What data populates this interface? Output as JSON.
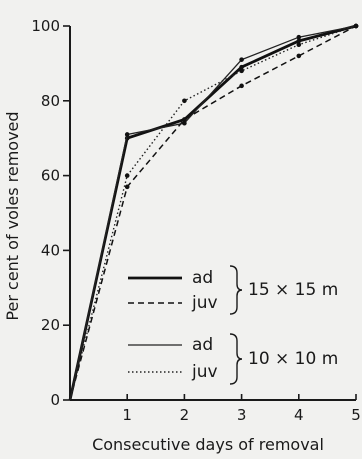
{
  "chart_data": {
    "type": "line",
    "title": "",
    "xlabel": "Consecutive days of removal",
    "ylabel": "Per cent of voles removed",
    "xlim": [
      0,
      5
    ],
    "ylim": [
      0,
      100
    ],
    "x_ticks": [
      "1",
      "2",
      "3",
      "4",
      "5"
    ],
    "y_ticks": [
      "0",
      "20",
      "40",
      "60",
      "80",
      "100"
    ],
    "grid": false,
    "legend_position": "lower-right",
    "legend": [
      {
        "label": "ad",
        "group": "15 × 15 m"
      },
      {
        "label": "juv",
        "group": "15 × 15 m"
      },
      {
        "label": "ad",
        "group": "10 × 10 m"
      },
      {
        "label": "juv",
        "group": "10 × 10 m"
      }
    ],
    "series": [
      {
        "name": "ad",
        "group": "15 × 15 m",
        "style": "solid-thick",
        "x": [
          0,
          1,
          2,
          3,
          4,
          5
        ],
        "y": [
          0,
          70,
          75,
          89,
          96,
          100
        ]
      },
      {
        "name": "juv",
        "group": "15 × 15 m",
        "style": "dashed",
        "x": [
          0,
          1,
          2,
          3,
          4,
          5
        ],
        "y": [
          0,
          57,
          75,
          84,
          92,
          100
        ]
      },
      {
        "name": "ad",
        "group": "10 × 10 m",
        "style": "solid-thin",
        "x": [
          0,
          1,
          2,
          3,
          4,
          5
        ],
        "y": [
          0,
          71,
          74,
          91,
          97,
          100
        ]
      },
      {
        "name": "juv",
        "group": "10 × 10 m",
        "style": "dotted",
        "x": [
          0,
          1,
          2,
          3,
          4,
          5
        ],
        "y": [
          0,
          60,
          80,
          88,
          95,
          100
        ]
      }
    ]
  }
}
